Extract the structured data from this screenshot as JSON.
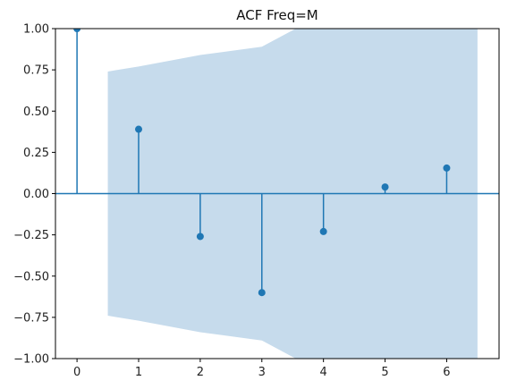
{
  "chart_data": {
    "type": "stem",
    "title": "ACF Freq=M",
    "xlabel": "",
    "ylabel": "",
    "xlim": [
      -0.35,
      6.85
    ],
    "ylim": [
      -1.0,
      1.0
    ],
    "x_ticks": [
      0,
      1,
      2,
      3,
      4,
      5,
      6
    ],
    "y_ticks": [
      -1.0,
      -0.75,
      -0.5,
      -0.25,
      0.0,
      0.25,
      0.5,
      0.75,
      1.0
    ],
    "y_tick_labels": [
      "−1.00",
      "−0.75",
      "−0.50",
      "−0.25",
      "0.00",
      "0.25",
      "0.50",
      "0.75",
      "1.00"
    ],
    "lags": [
      0,
      1,
      2,
      3,
      4,
      5,
      6
    ],
    "acf_values": [
      1.0,
      0.39,
      -0.26,
      -0.6,
      -0.23,
      0.04,
      0.155
    ],
    "confidence_band": {
      "x": [
        0.5,
        1,
        2,
        3,
        4,
        5,
        6,
        6.5
      ],
      "upper": [
        0.74,
        0.77,
        0.84,
        0.89,
        1.09,
        1.13,
        1.16,
        1.17
      ]
    },
    "grid": false,
    "colors": {
      "stem": "#1f77b4",
      "band": "#c6dbec",
      "axis": "#000000"
    }
  }
}
